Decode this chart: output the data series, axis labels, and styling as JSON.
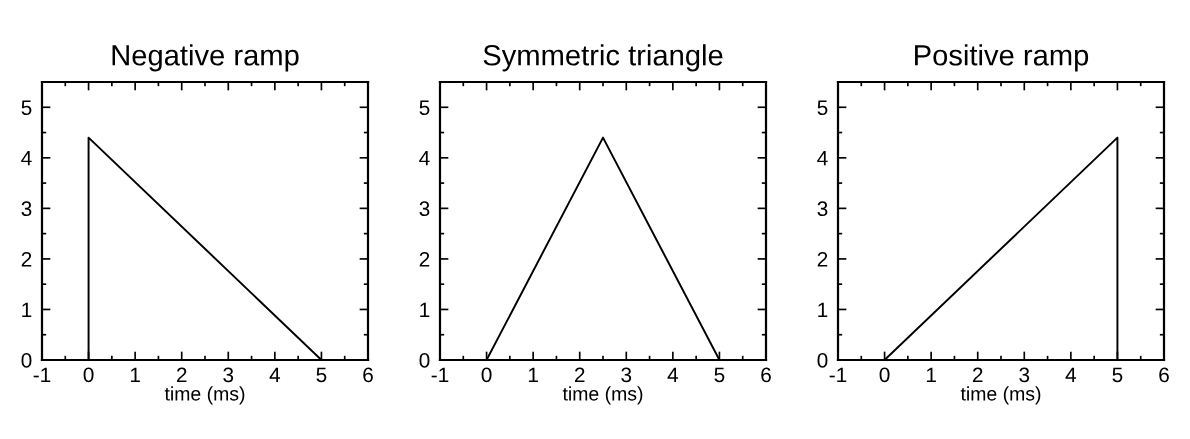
{
  "chart_data": [
    {
      "type": "line",
      "title": "Negative ramp",
      "xlabel": "time (ms)",
      "series": [
        {
          "color": "#000000",
          "x": [
            0,
            0,
            5
          ],
          "values": [
            0,
            4.4,
            0
          ]
        }
      ],
      "xlim": [
        -1,
        6
      ],
      "ylim": [
        0,
        5.5
      ],
      "xticks": [
        -1,
        {
          "value": -0.5,
          "label": null
        },
        0,
        {
          "value": 0.5,
          "label": null
        },
        1,
        {
          "value": 1.5,
          "label": null
        },
        2,
        {
          "value": 2.5,
          "label": null
        },
        3,
        {
          "value": 3.5,
          "label": null
        },
        4,
        {
          "value": 4.5,
          "label": null
        },
        5,
        {
          "value": 5.5,
          "label": null
        },
        6
      ],
      "yticks": [
        0,
        {
          "value": 0.5,
          "label": null
        },
        1,
        {
          "value": 1.5,
          "label": null
        },
        2,
        {
          "value": 2.5,
          "label": null
        },
        3,
        {
          "value": 3.5,
          "label": null
        },
        4,
        {
          "value": 4.5,
          "label": null
        },
        5
      ],
      "grid": false
    },
    {
      "type": "line",
      "title": "Symmetric triangle",
      "xlabel": "time (ms)",
      "series": [
        {
          "color": "#000000",
          "x": [
            0,
            2.5,
            5
          ],
          "values": [
            0,
            4.4,
            0
          ]
        }
      ],
      "xlim": [
        -1,
        6
      ],
      "ylim": [
        0,
        5.5
      ],
      "xticks": [
        -1,
        {
          "value": -0.5,
          "label": null
        },
        0,
        {
          "value": 0.5,
          "label": null
        },
        1,
        {
          "value": 1.5,
          "label": null
        },
        2,
        {
          "value": 2.5,
          "label": null
        },
        3,
        {
          "value": 3.5,
          "label": null
        },
        4,
        {
          "value": 4.5,
          "label": null
        },
        5,
        {
          "value": 5.5,
          "label": null
        },
        6
      ],
      "yticks": [
        0,
        {
          "value": 0.5,
          "label": null
        },
        1,
        {
          "value": 1.5,
          "label": null
        },
        2,
        {
          "value": 2.5,
          "label": null
        },
        3,
        {
          "value": 3.5,
          "label": null
        },
        4,
        {
          "value": 4.5,
          "label": null
        },
        5
      ],
      "grid": false
    },
    {
      "type": "line",
      "title": "Positive ramp",
      "xlabel": "time (ms)",
      "series": [
        {
          "color": "#000000",
          "x": [
            0,
            5,
            5
          ],
          "values": [
            0,
            4.4,
            0
          ]
        }
      ],
      "xlim": [
        -1,
        6
      ],
      "ylim": [
        0,
        5.5
      ],
      "xticks": [
        -1,
        {
          "value": -0.5,
          "label": null
        },
        0,
        {
          "value": 0.5,
          "label": null
        },
        1,
        {
          "value": 1.5,
          "label": null
        },
        2,
        {
          "value": 2.5,
          "label": null
        },
        3,
        {
          "value": 3.5,
          "label": null
        },
        4,
        {
          "value": 4.5,
          "label": null
        },
        5,
        {
          "value": 5.5,
          "label": null
        },
        6
      ],
      "yticks": [
        0,
        {
          "value": 0.5,
          "label": null
        },
        1,
        {
          "value": 1.5,
          "label": null
        },
        2,
        {
          "value": 2.5,
          "label": null
        },
        3,
        {
          "value": 3.5,
          "label": null
        },
        4,
        {
          "value": 4.5,
          "label": null
        },
        5
      ],
      "grid": false
    }
  ]
}
